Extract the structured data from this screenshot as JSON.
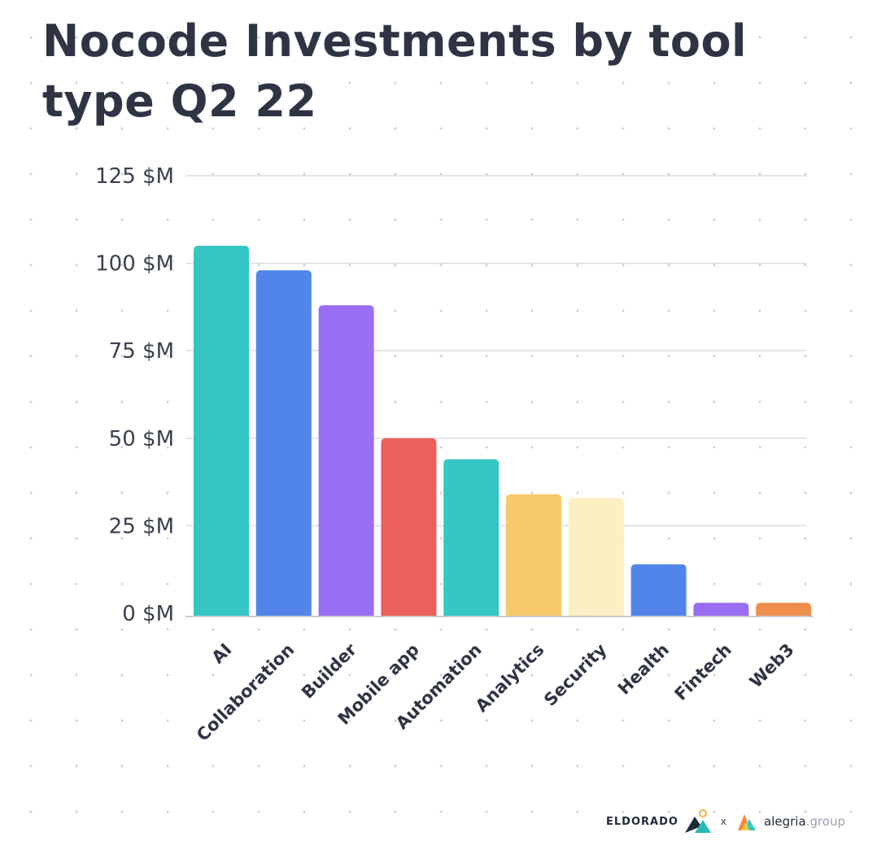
{
  "chart_data": {
    "type": "bar",
    "title": "Nocode Investments by tool type Q2 22",
    "xlabel": "",
    "ylabel": "",
    "categories": [
      "AI",
      "Collaboration",
      "Builder",
      "Mobile app",
      "Automation",
      "Analytics",
      "Security",
      "Health",
      "Fintech",
      "Web3"
    ],
    "values": [
      105,
      98,
      88,
      50,
      44,
      34,
      33,
      14,
      3,
      3
    ],
    "colors": [
      "#35c6c3",
      "#5185ea",
      "#9a6ef2",
      "#ec5f5a",
      "#35c6c3",
      "#f7c96a",
      "#fcefc4",
      "#5185ea",
      "#9a6ef2",
      "#ef8f4e"
    ],
    "ylim": [
      0,
      125
    ],
    "yticks": [
      0,
      25,
      50,
      75,
      100,
      125
    ],
    "ytick_labels": [
      "0 $M",
      "25 $M",
      "50 $M",
      "75 $M",
      "100 $M",
      "125 $M"
    ],
    "grid": true,
    "legend": "none"
  },
  "footer": {
    "brand_left": "ELDORADO",
    "separator": "x",
    "brand_right_main": "alegria",
    "brand_right_suffix": ".group"
  }
}
